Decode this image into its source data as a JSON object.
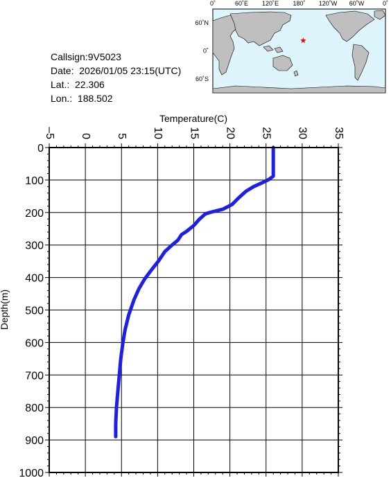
{
  "info": {
    "callsign": "Callsign:9V5023",
    "date": "Date:  2026/01/05 23:15(UTC)",
    "lat": "Lat.:  22.306",
    "lon": "Lon.:  188.502"
  },
  "map": {
    "top_labels": [
      "0˚",
      "60˚E",
      "120˚E",
      "180˚",
      "120˚W",
      "60˚W",
      "0˚"
    ],
    "side_labels": [
      "60˚N",
      "0˚",
      "60˚S"
    ],
    "marker": {
      "lat": 22.306,
      "lon": 188.502,
      "color": "#ff0000",
      "symbol": "star-icon"
    },
    "ocean_color": "#dff5fd",
    "land_color": "#bfbfbf"
  },
  "chart_data": {
    "type": "line",
    "xlabel": "Temperature(C)",
    "ylabel": "Depth(m)",
    "xlim": [
      -5,
      35
    ],
    "ylim": [
      0,
      1000
    ],
    "y_inverted": true,
    "x_ticks": [
      "–5",
      "0",
      "5",
      "10",
      "15",
      "20",
      "25",
      "30",
      "35"
    ],
    "y_ticks": [
      "0",
      "100",
      "200",
      "300",
      "400",
      "500",
      "600",
      "700",
      "800",
      "900",
      "1000"
    ],
    "grid": true,
    "line_color": "#1e1ee6",
    "series": [
      {
        "points": [
          [
            26.0,
            0
          ],
          [
            26.0,
            30
          ],
          [
            26.0,
            60
          ],
          [
            26.0,
            88
          ],
          [
            25.4,
            98
          ],
          [
            24.5,
            108
          ],
          [
            23.3,
            120
          ],
          [
            22.2,
            135
          ],
          [
            21.2,
            155
          ],
          [
            20.3,
            175
          ],
          [
            19.0,
            190
          ],
          [
            17.5,
            198
          ],
          [
            16.6,
            204
          ],
          [
            15.8,
            220
          ],
          [
            15.0,
            240
          ],
          [
            14.0,
            258
          ],
          [
            13.3,
            268
          ],
          [
            12.8,
            285
          ],
          [
            12.0,
            300
          ],
          [
            11.0,
            320
          ],
          [
            10.1,
            350
          ],
          [
            9.2,
            375
          ],
          [
            8.2,
            405
          ],
          [
            7.4,
            435
          ],
          [
            6.7,
            470
          ],
          [
            6.0,
            515
          ],
          [
            5.5,
            560
          ],
          [
            5.2,
            600
          ],
          [
            4.9,
            650
          ],
          [
            4.7,
            700
          ],
          [
            4.5,
            750
          ],
          [
            4.3,
            800
          ],
          [
            4.2,
            850
          ],
          [
            4.2,
            880
          ],
          [
            4.2,
            890
          ]
        ]
      }
    ]
  }
}
